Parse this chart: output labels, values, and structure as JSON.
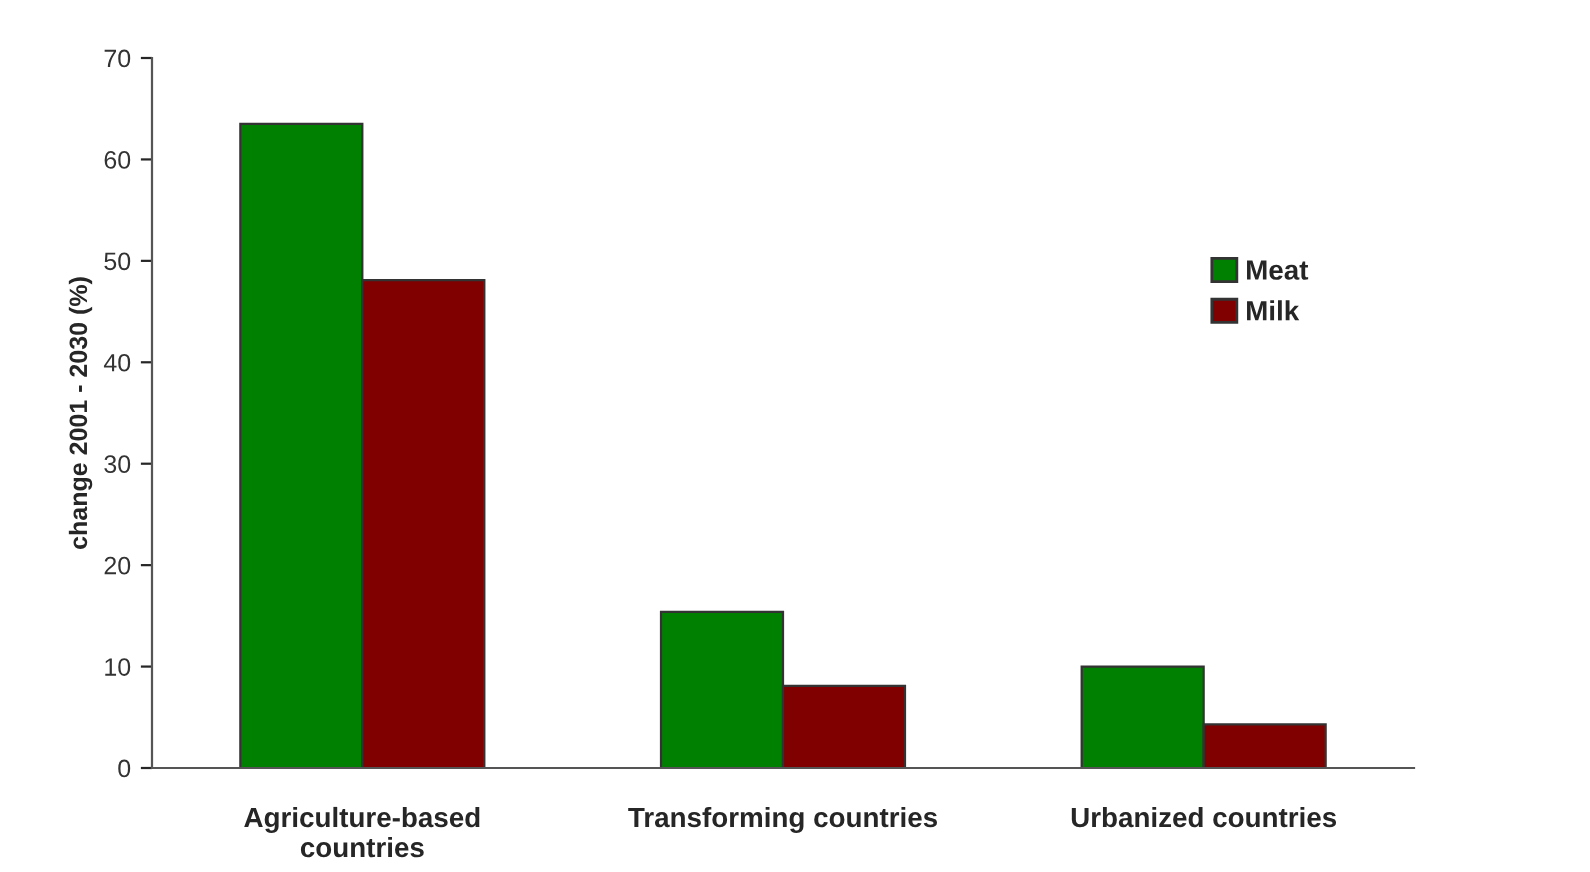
{
  "chart_data": {
    "type": "bar",
    "ylabel": "change 2001 - 2030 (%)",
    "categories": [
      "Agriculture-based\ncountries",
      "Transforming countries",
      "Urbanized countries"
    ],
    "series": [
      {
        "name": "Meat",
        "color": "#008000",
        "values": [
          63.5,
          15.4,
          10.0
        ]
      },
      {
        "name": "Milk",
        "color": "#800000",
        "values": [
          48.1,
          8.1,
          4.3
        ]
      }
    ],
    "ylim": [
      0,
      70
    ],
    "yticks": [
      0,
      10,
      20,
      30,
      40,
      50,
      60,
      70
    ],
    "grid": false,
    "legend": "right"
  }
}
